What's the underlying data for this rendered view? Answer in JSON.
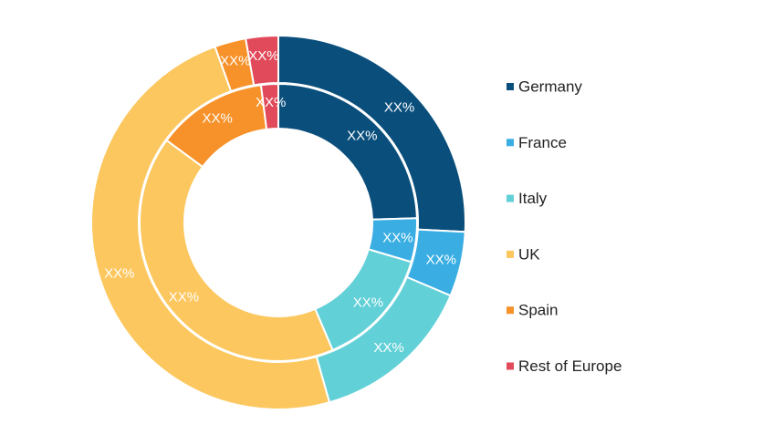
{
  "chart_data": {
    "type": "donut",
    "title": "",
    "legend_position": "right",
    "categories": [
      "Germany",
      "France",
      "Italy",
      "UK",
      "Spain",
      "Rest of Europe"
    ],
    "colors": {
      "Germany": "#0a4f7c",
      "France": "#3aaee3",
      "Italy": "#62d0d7",
      "UK": "#fcc75e",
      "Spain": "#f7922a",
      "Rest of Europe": "#e14a5a"
    },
    "series": [
      {
        "ring": "outer",
        "values": [
          25.8,
          5.6,
          14.2,
          48.9,
          2.7,
          2.8
        ],
        "labels": [
          "XX%",
          "XX%",
          "XX%",
          "XX%",
          "XX%",
          "XX%"
        ]
      },
      {
        "ring": "inner",
        "values": [
          24.5,
          5.1,
          14.0,
          41.5,
          12.9,
          2.0
        ],
        "labels": [
          "XX%",
          "XX%",
          "XX%",
          "XX%",
          "XX%",
          "XX%"
        ]
      }
    ]
  }
}
